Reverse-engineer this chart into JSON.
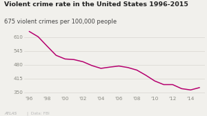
{
  "title": "Violent crime rate in the United States 1996-2015",
  "subtitle": "675 violent crimes per 100,000 people",
  "years": [
    1996,
    1997,
    1998,
    1999,
    2000,
    2001,
    2002,
    2003,
    2004,
    2005,
    2006,
    2007,
    2008,
    2009,
    2010,
    2011,
    2012,
    2013,
    2014,
    2015
  ],
  "values": [
    636,
    611,
    567,
    524,
    507,
    504,
    494,
    476,
    463,
    469,
    474,
    467,
    455,
    431,
    404,
    387,
    387,
    368,
    362,
    373
  ],
  "line_color": "#b5006e",
  "bg_color": "#f1f0ec",
  "ylim": [
    335,
    650
  ],
  "yticks": [
    350,
    415,
    480,
    545,
    610
  ],
  "xtick_years": [
    1996,
    1998,
    2000,
    2002,
    2004,
    2006,
    2008,
    2010,
    2012,
    2014
  ],
  "xtick_labels": [
    "'96",
    "'98",
    "'00",
    "'02",
    "'04",
    "'06",
    "'08",
    "'10",
    "'12",
    "'14"
  ],
  "footer_atlas": "ATLAS",
  "footer_source": "Data: FBI",
  "title_fontsize": 6.8,
  "subtitle_fontsize": 6.0,
  "tick_fontsize": 5.2,
  "footer_fontsize": 4.2,
  "grid_color": "#d8d6d0",
  "tick_color": "#888880",
  "title_color": "#222222",
  "subtitle_color": "#444444"
}
